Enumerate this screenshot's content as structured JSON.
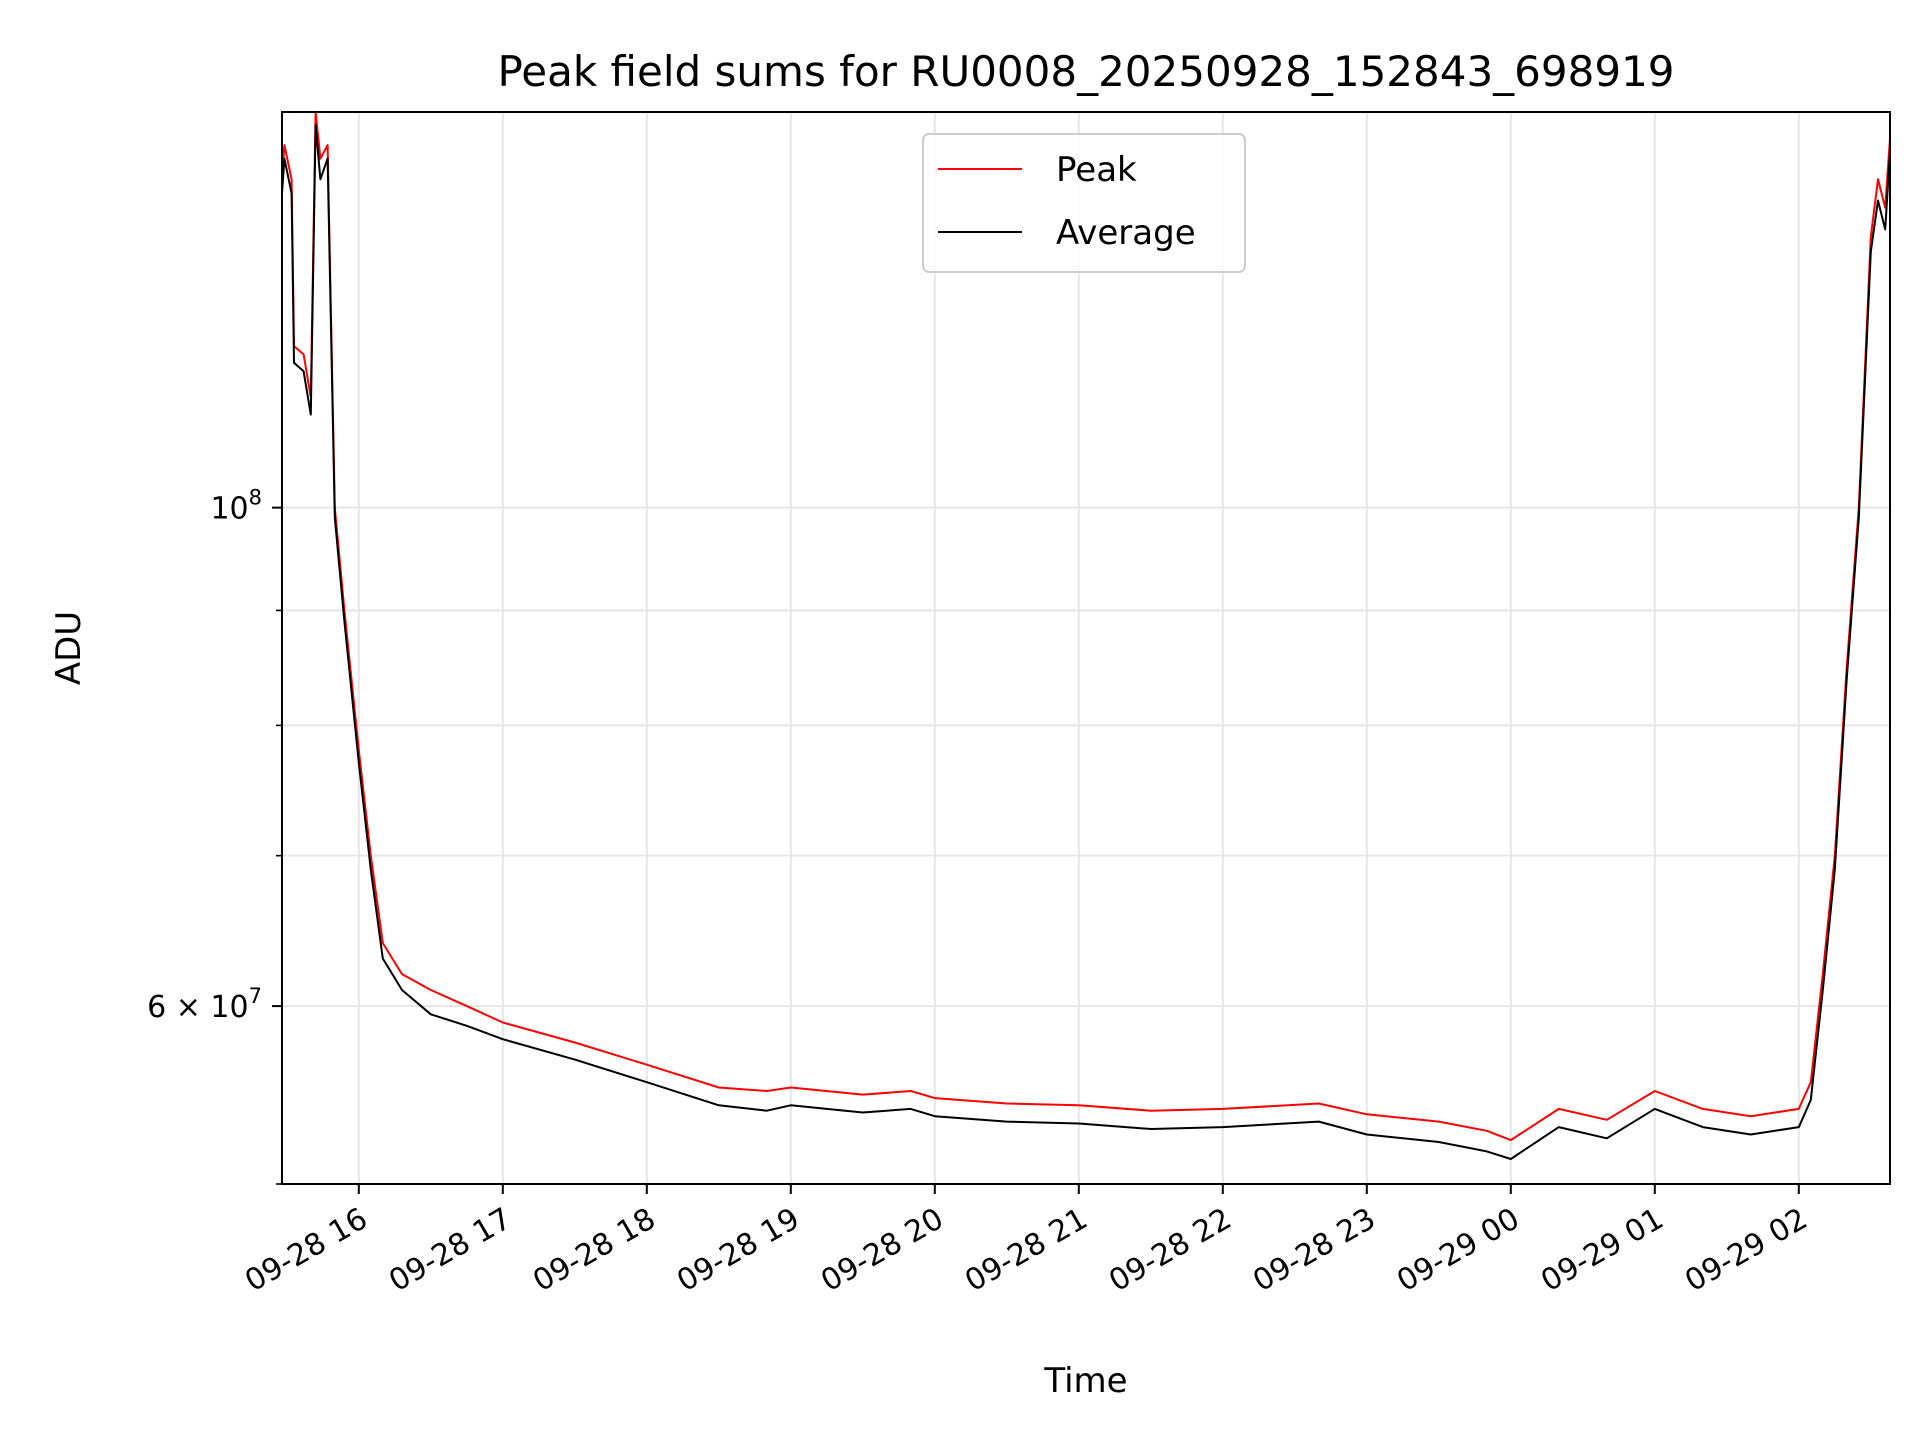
{
  "chart_data": {
    "type": "line",
    "title": "Peak field sums for RU0008_20250928_152843_698919",
    "xlabel": "Time",
    "ylabel": "ADU",
    "y_scale": "log",
    "grid": true,
    "legend_position": "upper-center",
    "xlim": [
      "2025-09-28 15:28",
      "2025-09-29 02:38"
    ],
    "ylim": [
      50000000,
      150000000
    ],
    "x_ticks": [
      "2025-09-28 16:00",
      "2025-09-28 17:00",
      "2025-09-28 18:00",
      "2025-09-28 19:00",
      "2025-09-28 20:00",
      "2025-09-28 21:00",
      "2025-09-28 22:00",
      "2025-09-28 23:00",
      "2025-09-29 00:00",
      "2025-09-29 01:00",
      "2025-09-29 02:00"
    ],
    "x_tick_labels": [
      "09-28 16",
      "09-28 17",
      "09-28 18",
      "09-28 19",
      "09-28 20",
      "09-28 21",
      "09-28 22",
      "09-28 23",
      "09-29 00",
      "09-29 01",
      "09-29 02"
    ],
    "y_major_ticks": [
      {
        "value": 60000000,
        "mantissa": "6",
        "exponent": "7"
      },
      {
        "value": 100000000,
        "mantissa": "",
        "exponent": "8"
      }
    ],
    "y_minor_ticks": [
      50000000,
      70000000,
      80000000,
      90000000
    ],
    "y_tick_base": "10",
    "y_tick_times": "×",
    "series": [
      {
        "name": "Peak",
        "color": "#ff0000",
        "x": [
          "2025-09-28 15:28",
          "2025-09-28 15:29",
          "2025-09-28 15:32",
          "2025-09-28 15:33",
          "2025-09-28 15:37",
          "2025-09-28 15:40",
          "2025-09-28 15:42",
          "2025-09-28 15:44",
          "2025-09-28 15:47",
          "2025-09-28 15:50",
          "2025-09-28 15:54",
          "2025-09-28 16:00",
          "2025-09-28 16:05",
          "2025-09-28 16:10",
          "2025-09-28 16:18",
          "2025-09-28 16:30",
          "2025-09-28 16:45",
          "2025-09-28 17:00",
          "2025-09-28 17:30",
          "2025-09-28 18:00",
          "2025-09-28 18:30",
          "2025-09-28 18:50",
          "2025-09-28 19:00",
          "2025-09-28 19:30",
          "2025-09-28 19:50",
          "2025-09-28 20:00",
          "2025-09-28 20:30",
          "2025-09-28 21:00",
          "2025-09-28 21:30",
          "2025-09-28 22:00",
          "2025-09-28 22:40",
          "2025-09-28 23:00",
          "2025-09-28 23:30",
          "2025-09-28 23:50",
          "2025-09-29 00:00",
          "2025-09-29 00:20",
          "2025-09-29 00:40",
          "2025-09-29 01:00",
          "2025-09-29 01:20",
          "2025-09-29 01:40",
          "2025-09-29 02:00",
          "2025-09-29 02:05",
          "2025-09-29 02:10",
          "2025-09-29 02:15",
          "2025-09-29 02:20",
          "2025-09-29 02:25",
          "2025-09-29 02:30",
          "2025-09-29 02:33",
          "2025-09-29 02:36",
          "2025-09-29 02:38"
        ],
        "y": [
          140000000,
          145000000,
          140000000,
          118000000,
          117000000,
          112000000,
          150000000,
          143000000,
          145000000,
          100000000,
          90000000,
          78000000,
          70000000,
          64000000,
          62000000,
          61000000,
          60000000,
          59000000,
          57800000,
          56500000,
          55200000,
          55000000,
          55200000,
          54800000,
          55000000,
          54600000,
          54300000,
          54200000,
          53900000,
          54000000,
          54300000,
          53700000,
          53300000,
          52800000,
          52300000,
          54000000,
          53400000,
          55000000,
          54000000,
          53600000,
          54000000,
          55500000,
          62000000,
          70000000,
          85000000,
          100000000,
          132000000,
          140000000,
          136000000,
          146000000
        ]
      },
      {
        "name": "Average",
        "color": "#000000",
        "x": [
          "2025-09-28 15:28",
          "2025-09-28 15:29",
          "2025-09-28 15:32",
          "2025-09-28 15:33",
          "2025-09-28 15:37",
          "2025-09-28 15:40",
          "2025-09-28 15:42",
          "2025-09-28 15:44",
          "2025-09-28 15:47",
          "2025-09-28 15:50",
          "2025-09-28 15:54",
          "2025-09-28 16:00",
          "2025-09-28 16:05",
          "2025-09-28 16:10",
          "2025-09-28 16:18",
          "2025-09-28 16:30",
          "2025-09-28 16:45",
          "2025-09-28 17:00",
          "2025-09-28 17:30",
          "2025-09-28 18:00",
          "2025-09-28 18:30",
          "2025-09-28 18:50",
          "2025-09-28 19:00",
          "2025-09-28 19:30",
          "2025-09-28 19:50",
          "2025-09-28 20:00",
          "2025-09-28 20:30",
          "2025-09-28 21:00",
          "2025-09-28 21:30",
          "2025-09-28 22:00",
          "2025-09-28 22:40",
          "2025-09-28 23:00",
          "2025-09-28 23:30",
          "2025-09-28 23:50",
          "2025-09-29 00:00",
          "2025-09-29 00:20",
          "2025-09-29 00:40",
          "2025-09-29 01:00",
          "2025-09-29 01:20",
          "2025-09-29 01:40",
          "2025-09-29 02:00",
          "2025-09-29 02:05",
          "2025-09-29 02:10",
          "2025-09-29 02:15",
          "2025-09-29 02:20",
          "2025-09-29 02:25",
          "2025-09-29 02:30",
          "2025-09-29 02:33",
          "2025-09-29 02:36",
          "2025-09-29 02:38"
        ],
        "y": [
          138000000,
          143000000,
          138000000,
          116000000,
          115000000,
          110000000,
          148000000,
          140000000,
          143000000,
          99000000,
          89000000,
          77000000,
          69000000,
          63000000,
          61000000,
          59500000,
          58800000,
          58000000,
          56800000,
          55500000,
          54200000,
          53900000,
          54200000,
          53800000,
          54000000,
          53600000,
          53300000,
          53200000,
          52900000,
          53000000,
          53300000,
          52600000,
          52200000,
          51700000,
          51300000,
          53000000,
          52400000,
          54000000,
          53000000,
          52600000,
          53000000,
          54500000,
          61000000,
          69000000,
          84000000,
          99000000,
          130000000,
          137000000,
          133000000,
          144000000
        ]
      }
    ]
  }
}
